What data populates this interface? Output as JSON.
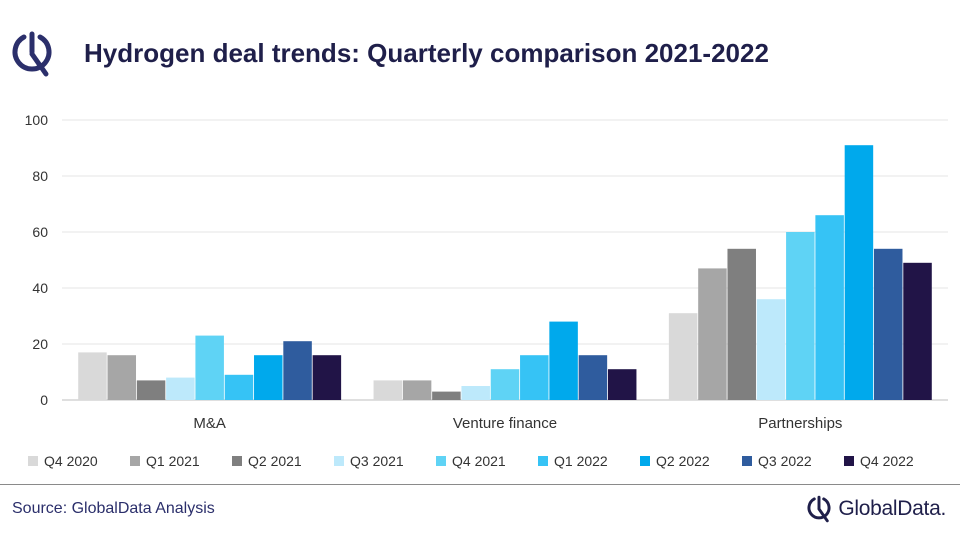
{
  "title": "Hydrogen deal trends: Quarterly comparison 2021-2022",
  "source": "Source: GlobalData Analysis",
  "brand": "GlobalData.",
  "logo_icon": "globaldata-logo-icon",
  "chart_data": {
    "type": "bar",
    "categories": [
      "M&A",
      "Venture finance",
      "Partnerships"
    ],
    "ylim": [
      0,
      100
    ],
    "yticks": [
      0,
      20,
      40,
      60,
      80,
      100
    ],
    "grid": true,
    "legend_position": "bottom",
    "series": [
      {
        "name": "Q4 2020",
        "color": "#d9d9d9",
        "values": [
          17,
          7,
          31
        ]
      },
      {
        "name": "Q1 2021",
        "color": "#a6a6a6",
        "values": [
          16,
          7,
          47
        ]
      },
      {
        "name": "Q2 2021",
        "color": "#7f7f7f",
        "values": [
          7,
          3,
          54
        ]
      },
      {
        "name": "Q3 2021",
        "color": "#bde9fb",
        "values": [
          8,
          5,
          36
        ]
      },
      {
        "name": "Q4 2021",
        "color": "#5fd3f5",
        "values": [
          23,
          11,
          60
        ]
      },
      {
        "name": "Q1 2022",
        "color": "#36c3f5",
        "values": [
          9,
          16,
          66
        ]
      },
      {
        "name": "Q2 2022",
        "color": "#00a9ec",
        "values": [
          16,
          28,
          91
        ]
      },
      {
        "name": "Q3 2022",
        "color": "#2f5c9e",
        "values": [
          21,
          16,
          54
        ]
      },
      {
        "name": "Q4 2022",
        "color": "#211447",
        "values": [
          16,
          11,
          49
        ]
      }
    ]
  }
}
